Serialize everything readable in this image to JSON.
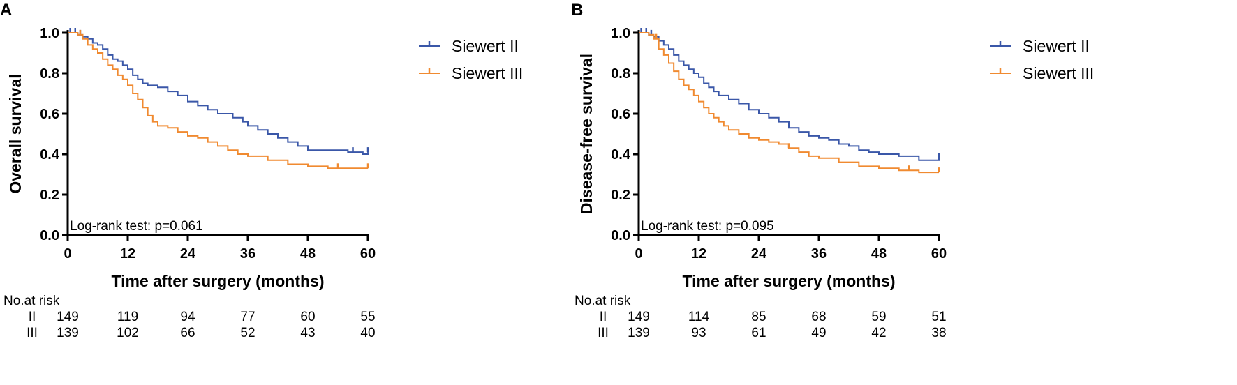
{
  "chart_data": [
    {
      "panel_label": "A",
      "type": "line",
      "title": "",
      "xlabel": "Time after surgery (months)",
      "ylabel": "Overall survival",
      "xlim": [
        0,
        60
      ],
      "ylim": [
        0.0,
        1.0
      ],
      "x_ticks": [
        "0",
        "12",
        "24",
        "36",
        "48",
        "60"
      ],
      "y_ticks": [
        "0.0",
        "0.2",
        "0.4",
        "0.6",
        "0.8",
        "1.0"
      ],
      "legend": "top-right",
      "annotation": "Log-rank test: p=0.061",
      "series": [
        {
          "name": "Siewert II",
          "color": "#3a57a8",
          "x": [
            0,
            2,
            3,
            4,
            5,
            6,
            7,
            8,
            9,
            10,
            11,
            12,
            13,
            14,
            15,
            16,
            18,
            20,
            22,
            24,
            26,
            28,
            30,
            33,
            35,
            36,
            38,
            40,
            42,
            44,
            46,
            48,
            52,
            56,
            59,
            60
          ],
          "y": [
            1.0,
            0.99,
            0.98,
            0.97,
            0.95,
            0.94,
            0.92,
            0.89,
            0.87,
            0.86,
            0.84,
            0.82,
            0.79,
            0.77,
            0.75,
            0.74,
            0.73,
            0.71,
            0.69,
            0.66,
            0.64,
            0.62,
            0.6,
            0.58,
            0.56,
            0.54,
            0.52,
            0.5,
            0.48,
            0.46,
            0.44,
            0.42,
            0.42,
            0.41,
            0.4,
            0.41
          ],
          "censor_x": [
            0.5,
            1.5,
            2.5,
            57,
            60
          ]
        },
        {
          "name": "Siewert III",
          "color": "#f08a30",
          "x": [
            0,
            2,
            3,
            4,
            5,
            6,
            7,
            8,
            9,
            10,
            11,
            12,
            13,
            14,
            15,
            16,
            17,
            18,
            20,
            22,
            24,
            26,
            28,
            30,
            32,
            34,
            36,
            40,
            44,
            48,
            52,
            56,
            60
          ],
          "y": [
            1.0,
            0.99,
            0.97,
            0.94,
            0.92,
            0.9,
            0.87,
            0.84,
            0.82,
            0.79,
            0.77,
            0.74,
            0.7,
            0.67,
            0.63,
            0.59,
            0.56,
            0.54,
            0.53,
            0.51,
            0.49,
            0.48,
            0.46,
            0.44,
            0.42,
            0.4,
            0.39,
            0.37,
            0.35,
            0.34,
            0.33,
            0.33,
            0.33
          ],
          "censor_x": [
            2.5,
            54,
            60
          ]
        }
      ],
      "risk_table": {
        "title": "No.at risk",
        "times": [
          0,
          12,
          24,
          36,
          48,
          60
        ],
        "rows": [
          {
            "label": "II",
            "values": [
              "149",
              "119",
              "94",
              "77",
              "60",
              "55"
            ]
          },
          {
            "label": "III",
            "values": [
              "139",
              "102",
              "66",
              "52",
              "43",
              "40"
            ]
          }
        ]
      }
    },
    {
      "panel_label": "B",
      "type": "line",
      "title": "",
      "xlabel": "Time after surgery (months)",
      "ylabel": "Disease-free survival",
      "xlim": [
        0,
        60
      ],
      "ylim": [
        0.0,
        1.0
      ],
      "x_ticks": [
        "0",
        "12",
        "24",
        "36",
        "48",
        "60"
      ],
      "y_ticks": [
        "0.0",
        "0.2",
        "0.4",
        "0.6",
        "0.8",
        "1.0"
      ],
      "legend": "top-right",
      "annotation": "Log-rank test: p=0.095",
      "series": [
        {
          "name": "Siewert II",
          "color": "#3a57a8",
          "x": [
            0,
            2,
            3,
            4,
            5,
            6,
            7,
            8,
            9,
            10,
            11,
            12,
            13,
            14,
            15,
            16,
            18,
            20,
            22,
            24,
            26,
            28,
            30,
            32,
            34,
            36,
            38,
            40,
            42,
            44,
            46,
            48,
            52,
            56,
            59,
            60
          ],
          "y": [
            1.0,
            0.99,
            0.98,
            0.96,
            0.94,
            0.92,
            0.89,
            0.86,
            0.84,
            0.82,
            0.8,
            0.78,
            0.75,
            0.73,
            0.71,
            0.69,
            0.67,
            0.65,
            0.62,
            0.6,
            0.58,
            0.56,
            0.53,
            0.51,
            0.49,
            0.48,
            0.47,
            0.45,
            0.44,
            0.42,
            0.41,
            0.4,
            0.39,
            0.37,
            0.37,
            0.38
          ],
          "censor_x": [
            0.5,
            1.5,
            2.5,
            60
          ]
        },
        {
          "name": "Siewert III",
          "color": "#f08a30",
          "x": [
            0,
            2,
            3,
            4,
            5,
            6,
            7,
            8,
            9,
            10,
            11,
            12,
            13,
            14,
            15,
            16,
            17,
            18,
            20,
            22,
            24,
            26,
            28,
            30,
            32,
            34,
            36,
            40,
            44,
            48,
            52,
            56,
            60
          ],
          "y": [
            1.0,
            0.99,
            0.97,
            0.92,
            0.89,
            0.85,
            0.81,
            0.77,
            0.74,
            0.72,
            0.69,
            0.66,
            0.63,
            0.6,
            0.58,
            0.56,
            0.54,
            0.52,
            0.5,
            0.48,
            0.47,
            0.46,
            0.45,
            0.43,
            0.41,
            0.39,
            0.38,
            0.36,
            0.34,
            0.33,
            0.32,
            0.31,
            0.31
          ],
          "censor_x": [
            3.5,
            30,
            54,
            60
          ]
        }
      ],
      "risk_table": {
        "title": "No.at risk",
        "times": [
          0,
          12,
          24,
          36,
          48,
          60
        ],
        "rows": [
          {
            "label": "II",
            "values": [
              "149",
              "114",
              "85",
              "68",
              "59",
              "51"
            ]
          },
          {
            "label": "III",
            "values": [
              "139",
              "93",
              "61",
              "49",
              "42",
              "38"
            ]
          }
        ]
      }
    }
  ]
}
